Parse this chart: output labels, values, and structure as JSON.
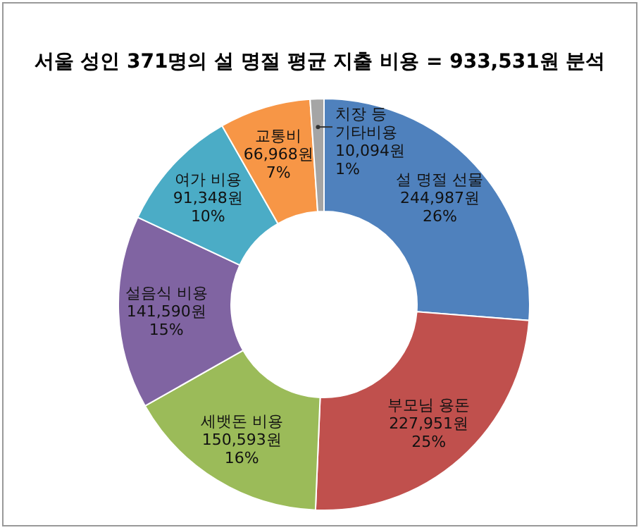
{
  "chart_data": {
    "type": "donut",
    "title": "서울 성인 371명의 설 명절 평균 지출 비용 = 933,531원 분석",
    "categories": [
      "설 명절 선물",
      "부모님 용돈",
      "세뱃돈 비용",
      "설음식 비용",
      "여가 비용",
      "교통비",
      "치장 등\n기타비용"
    ],
    "values": [
      244987,
      227951,
      150593,
      141590,
      91348,
      66968,
      10094
    ],
    "value_labels": [
      "244,987원\n26%",
      "227,951원\n25%",
      "150,593원\n16%",
      "141,590원\n15%",
      "91,348원\n10%",
      "66,968원\n7%",
      "10,094원\n1%"
    ],
    "colors": [
      "#4f81bd",
      "#c0504d",
      "#9bbb59",
      "#8064a2",
      "#4bacc6",
      "#f79646",
      "#a5a5a5"
    ],
    "legend": false
  }
}
